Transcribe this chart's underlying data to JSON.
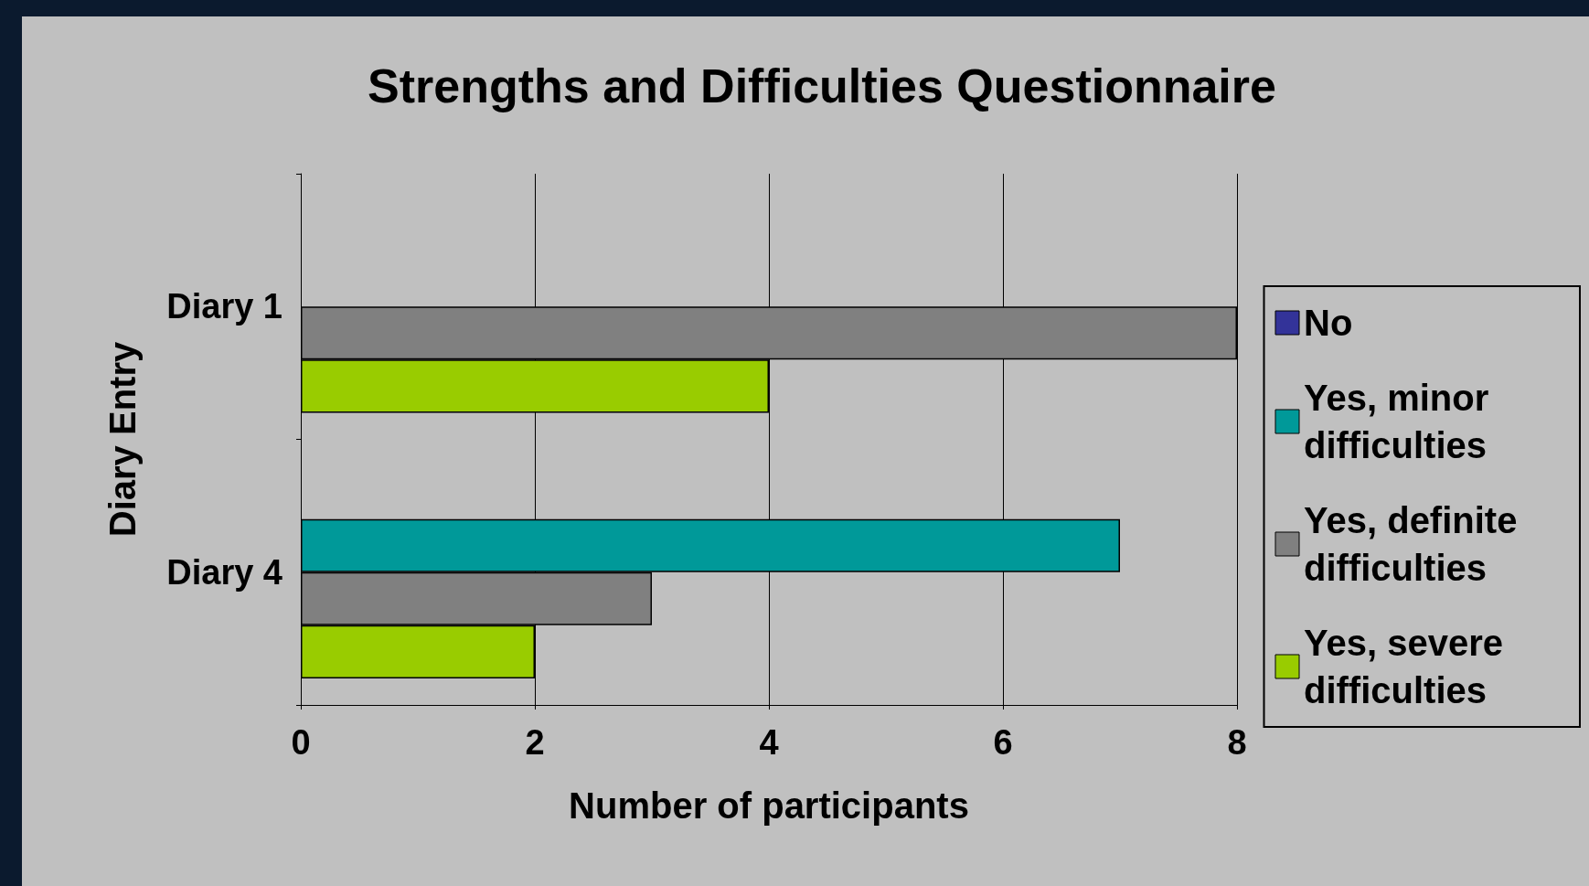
{
  "chart_data": {
    "type": "bar",
    "orientation": "horizontal",
    "title": "Strengths and Difficulties Questionnaire",
    "xlabel": "Number of participants",
    "ylabel": "Diary Entry",
    "categories": [
      "Diary 1",
      "Diary 4"
    ],
    "series": [
      {
        "name": "No",
        "color": "#333399",
        "values": [
          0,
          0
        ]
      },
      {
        "name": "Yes, minor difficulties",
        "color": "#009999",
        "values": [
          0,
          7
        ]
      },
      {
        "name": "Yes, definite difficulties",
        "color": "#808080",
        "values": [
          8,
          3
        ]
      },
      {
        "name": "Yes, severe difficulties",
        "color": "#99cc00",
        "values": [
          4,
          2
        ]
      }
    ],
    "xlim": [
      0,
      8
    ],
    "xticks": [
      0,
      2,
      4,
      6,
      8
    ],
    "grid": "x",
    "legend": "right"
  }
}
